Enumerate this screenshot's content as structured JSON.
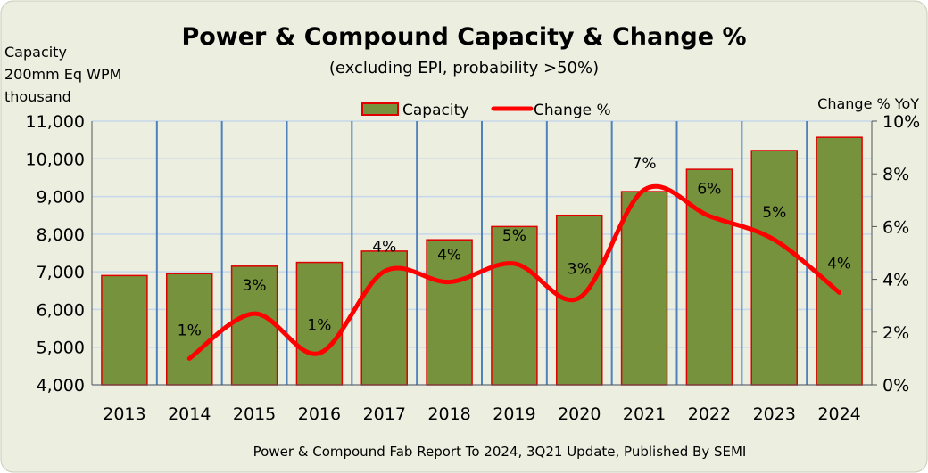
{
  "chart_data": {
    "type": "bar+line",
    "title": "Power & Compound Capacity & Change %",
    "subtitle": "(excluding EPI, probability >50%)",
    "ylabel_left": [
      "Capacity",
      "200mm Eq WPM",
      "thousand"
    ],
    "ylabel_right": "Change % YoY",
    "source": "Power & Compound Fab Report To 2024, 3Q21 Update, Published By SEMI",
    "categories": [
      "2013",
      "2014",
      "2015",
      "2016",
      "2017",
      "2018",
      "2019",
      "2020",
      "2021",
      "2022",
      "2023",
      "2024"
    ],
    "ylim_left": [
      4000,
      11000
    ],
    "yticks_left": [
      "4,000",
      "5,000",
      "6,000",
      "7,000",
      "8,000",
      "9,000",
      "10,000",
      "11,000"
    ],
    "ylim_right": [
      0,
      10
    ],
    "yticks_right": [
      "0%",
      "2%",
      "4%",
      "6%",
      "8%",
      "10%"
    ],
    "grid": true,
    "legend_placement": "top-center",
    "series": [
      {
        "name": "Capacity",
        "kind": "bar",
        "color": "#76923C",
        "edge_color": "#E00000",
        "values": [
          6900,
          6950,
          7150,
          7250,
          7550,
          7850,
          8200,
          8500,
          9130,
          9720,
          10220,
          10570
        ]
      },
      {
        "name": "Change %",
        "kind": "line",
        "color": "#FF0000",
        "values": [
          null,
          1.0,
          2.7,
          1.2,
          4.3,
          3.9,
          4.6,
          3.3,
          7.4,
          6.4,
          5.5,
          3.5
        ],
        "labels": [
          "",
          "1%",
          "3%",
          "1%",
          "4%",
          "4%",
          "5%",
          "3%",
          "7%",
          "6%",
          "5%",
          "4%"
        ]
      }
    ]
  }
}
